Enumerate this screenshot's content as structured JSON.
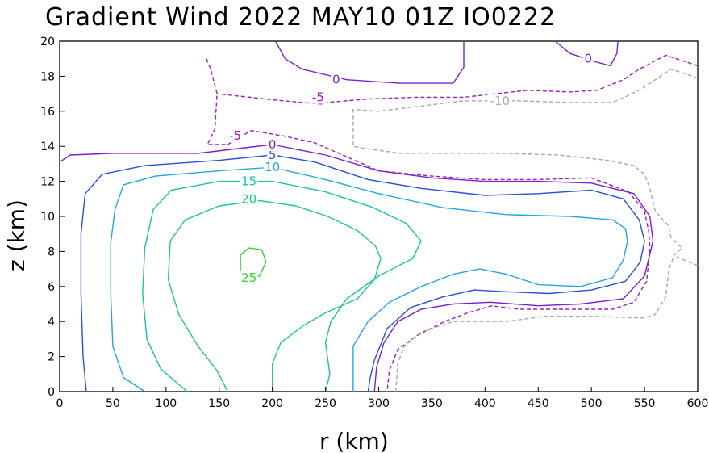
{
  "chart_data": {
    "type": "contour",
    "title": "Gradient Wind 2022 MAY10 01Z   IO0222",
    "xlabel": "r (km)",
    "ylabel": "z (km)",
    "xlim": [
      0,
      600
    ],
    "ylim": [
      0,
      20
    ],
    "xticks": [
      "0",
      "50",
      "100",
      "150",
      "200",
      "250",
      "300",
      "350",
      "400",
      "450",
      "500",
      "550",
      "600"
    ],
    "yticks": [
      "0",
      "2",
      "4",
      "6",
      "8",
      "10",
      "12",
      "14",
      "16",
      "18",
      "20"
    ],
    "grid": false,
    "colors": {
      "25": "#33cc33",
      "20": "#22c888",
      "15": "#1fbfa8",
      "10": "#22a6e0",
      "5": "#2a4fd6",
      "0": "#7a22c8",
      "-5": "#9a20b8",
      "-10": "#a8a8a8"
    },
    "levels": [
      {
        "value": 25,
        "label": "25",
        "style": "solid",
        "points": [
          [
            170,
            7.8
          ],
          [
            178,
            8.2
          ],
          [
            190,
            8.1
          ],
          [
            194,
            7.4
          ],
          [
            188,
            6.6
          ],
          [
            178,
            6.5
          ],
          [
            170,
            6.9
          ],
          [
            170,
            7.8
          ]
        ],
        "label_at": [
          178,
          6.5
        ]
      },
      {
        "value": 20,
        "label": "20",
        "style": "solid",
        "points": [
          [
            158,
            0
          ],
          [
            148,
            1.2
          ],
          [
            130,
            2.6
          ],
          [
            112,
            4.4
          ],
          [
            102,
            6.4
          ],
          [
            104,
            8.6
          ],
          [
            118,
            9.8
          ],
          [
            150,
            10.6
          ],
          [
            188,
            10.9
          ],
          [
            222,
            10.6
          ],
          [
            252,
            10.0
          ],
          [
            280,
            9.2
          ],
          [
            297,
            8.3
          ],
          [
            302,
            7.6
          ],
          [
            296,
            6.4
          ],
          [
            280,
            5.3
          ],
          [
            250,
            4.5
          ],
          [
            230,
            3.8
          ],
          [
            208,
            2.8
          ],
          [
            200,
            1.6
          ],
          [
            200,
            0
          ]
        ],
        "label_at": [
          178,
          11.0
        ]
      },
      {
        "value": 15,
        "label": "15",
        "style": "solid",
        "points": [
          [
            120,
            0
          ],
          [
            95,
            1.3
          ],
          [
            82,
            3.0
          ],
          [
            78,
            5.6
          ],
          [
            80,
            8.2
          ],
          [
            88,
            10.4
          ],
          [
            105,
            11.5
          ],
          [
            150,
            12.0
          ],
          [
            200,
            12.0
          ],
          [
            250,
            11.4
          ],
          [
            295,
            10.5
          ],
          [
            326,
            9.6
          ],
          [
            340,
            8.6
          ],
          [
            332,
            7.6
          ],
          [
            300,
            6.6
          ],
          [
            270,
            5.3
          ],
          [
            255,
            4.0
          ],
          [
            250,
            2.8
          ],
          [
            254,
            1.0
          ],
          [
            250,
            0
          ]
        ],
        "label_at": [
          178,
          12.0
        ]
      },
      {
        "value": 10,
        "label": "10",
        "style": "solid",
        "points": [
          [
            80,
            0
          ],
          [
            60,
            0.8
          ],
          [
            50,
            2.6
          ],
          [
            48,
            5.6
          ],
          [
            48,
            8.5
          ],
          [
            52,
            10.4
          ],
          [
            60,
            11.8
          ],
          [
            90,
            12.3
          ],
          [
            150,
            12.6
          ],
          [
            200,
            12.8
          ],
          [
            250,
            12.1
          ],
          [
            300,
            11.3
          ],
          [
            360,
            10.5
          ],
          [
            420,
            10.1
          ],
          [
            480,
            10.0
          ],
          [
            520,
            9.8
          ],
          [
            532,
            9.3
          ],
          [
            534,
            8.6
          ],
          [
            530,
            7.5
          ],
          [
            520,
            6.5
          ],
          [
            490,
            6.0
          ],
          [
            450,
            6.1
          ],
          [
            420,
            6.7
          ],
          [
            395,
            7.0
          ],
          [
            370,
            6.7
          ],
          [
            340,
            6.0
          ],
          [
            310,
            5.1
          ],
          [
            290,
            4.0
          ],
          [
            276,
            2.6
          ],
          [
            276,
            0.8
          ],
          [
            276,
            0
          ]
        ],
        "label_at": [
          200,
          12.8
        ]
      },
      {
        "value": 5,
        "label": "5",
        "style": "solid",
        "points": [
          [
            25,
            0
          ],
          [
            22,
            2.0
          ],
          [
            20,
            5.6
          ],
          [
            20,
            9.0
          ],
          [
            24,
            11.3
          ],
          [
            40,
            12.4
          ],
          [
            80,
            12.9
          ],
          [
            150,
            13.2
          ],
          [
            200,
            13.5
          ],
          [
            240,
            13.1
          ],
          [
            290,
            12.1
          ],
          [
            340,
            11.6
          ],
          [
            400,
            11.2
          ],
          [
            450,
            11.3
          ],
          [
            500,
            11.5
          ],
          [
            530,
            11.0
          ],
          [
            545,
            9.8
          ],
          [
            550,
            8.6
          ],
          [
            546,
            7.4
          ],
          [
            532,
            6.3
          ],
          [
            500,
            5.8
          ],
          [
            460,
            5.6
          ],
          [
            420,
            5.7
          ],
          [
            390,
            5.8
          ],
          [
            360,
            5.4
          ],
          [
            330,
            4.8
          ],
          [
            308,
            3.6
          ],
          [
            296,
            1.8
          ],
          [
            292,
            0.8
          ],
          [
            290,
            0
          ]
        ],
        "label_at": [
          200,
          13.5
        ]
      },
      {
        "value": 0,
        "label": "0",
        "style": "solid",
        "points": [
          [
            0,
            13.1
          ],
          [
            10,
            13.5
          ],
          [
            50,
            13.6
          ],
          [
            130,
            13.6
          ],
          [
            200,
            14.1
          ],
          [
            250,
            13.5
          ],
          [
            300,
            12.6
          ],
          [
            350,
            12.2
          ],
          [
            400,
            12.0
          ],
          [
            450,
            12.0
          ],
          [
            500,
            11.9
          ],
          [
            540,
            11.3
          ],
          [
            555,
            10.0
          ],
          [
            558,
            8.6
          ],
          [
            550,
            6.6
          ],
          [
            530,
            5.3
          ],
          [
            490,
            5.0
          ],
          [
            450,
            4.9
          ],
          [
            405,
            5.1
          ],
          [
            370,
            5.0
          ],
          [
            340,
            4.7
          ],
          [
            318,
            4.0
          ],
          [
            305,
            2.8
          ],
          [
            298,
            1.4
          ],
          [
            296,
            0
          ]
        ],
        "label_at": [
          200,
          14.1
        ]
      },
      {
        "value": 0,
        "label": "0",
        "style": "solid",
        "points": [
          [
            203,
            20
          ],
          [
            212,
            19.0
          ],
          [
            228,
            18.4
          ],
          [
            270,
            17.8
          ],
          [
            320,
            17.6
          ],
          [
            370,
            17.6
          ],
          [
            380,
            18.5
          ],
          [
            380,
            20
          ]
        ],
        "label_at": [
          260,
          17.8
        ]
      },
      {
        "value": 0,
        "label": "0",
        "style": "solid",
        "points": [
          [
            466,
            20
          ],
          [
            480,
            19.3
          ],
          [
            505,
            18.8
          ],
          [
            518,
            18.6
          ],
          [
            524,
            19.3
          ],
          [
            525,
            20
          ]
        ],
        "label_at": [
          497,
          19.0
        ]
      },
      {
        "value": -5,
        "label": "-5",
        "style": "dashed",
        "points": [
          [
            138,
            19.0
          ],
          [
            142,
            18.4
          ],
          [
            148,
            17.0
          ],
          [
            146,
            15.0
          ],
          [
            139,
            14.1
          ],
          [
            158,
            14.1
          ],
          [
            180,
            14.9
          ],
          [
            210,
            14.6
          ],
          [
            240,
            14.2
          ],
          [
            270,
            13.4
          ],
          [
            300,
            12.6
          ],
          [
            350,
            12.3
          ],
          [
            400,
            12.1
          ],
          [
            450,
            12.1
          ],
          [
            500,
            12.2
          ],
          [
            535,
            11.4
          ],
          [
            550,
            10.3
          ],
          [
            554,
            9.1
          ],
          [
            555,
            8.2
          ],
          [
            552,
            6.3
          ],
          [
            540,
            5.1
          ],
          [
            520,
            4.7
          ],
          [
            470,
            4.7
          ],
          [
            432,
            4.7
          ],
          [
            406,
            4.9
          ],
          [
            384,
            4.5
          ],
          [
            362,
            4.0
          ],
          [
            336,
            3.2
          ],
          [
            318,
            2.4
          ],
          [
            310,
            1.2
          ],
          [
            308,
            0
          ]
        ],
        "label_at": [
          165,
          14.6
        ]
      },
      {
        "value": -5,
        "label": "-5",
        "style": "dashed",
        "points": [
          [
            600,
            18.6
          ],
          [
            570,
            19.2
          ],
          [
            545,
            18.4
          ],
          [
            530,
            17.8
          ],
          [
            505,
            17.2
          ],
          [
            480,
            17.1
          ],
          [
            440,
            17.2
          ],
          [
            380,
            16.8
          ],
          [
            335,
            16.8
          ],
          [
            290,
            16.7
          ],
          [
            250,
            16.5
          ],
          [
            248,
            16.4
          ],
          [
            210,
            16.6
          ],
          [
            148,
            17.0
          ]
        ],
        "label_at": [
          243,
          16.8
        ]
      },
      {
        "value": -10,
        "label": "-10",
        "style": "dashed",
        "points": [
          [
            600,
            17.9
          ],
          [
            575,
            18.4
          ],
          [
            545,
            17.2
          ],
          [
            520,
            16.5
          ],
          [
            480,
            16.5
          ],
          [
            430,
            16.6
          ],
          [
            380,
            16.6
          ],
          [
            300,
            16.0
          ],
          [
            276,
            16.1
          ],
          [
            276,
            14.0
          ],
          [
            285,
            13.9
          ],
          [
            320,
            13.6
          ],
          [
            350,
            13.6
          ],
          [
            390,
            13.6
          ],
          [
            420,
            13.6
          ],
          [
            470,
            13.5
          ],
          [
            515,
            13.2
          ],
          [
            540,
            12.9
          ],
          [
            550,
            12.4
          ],
          [
            555,
            11.6
          ],
          [
            560,
            10.3
          ],
          [
            572,
            9.5
          ],
          [
            575,
            8.8
          ],
          [
            585,
            8.2
          ],
          [
            578,
            7.8
          ],
          [
            573,
            7.0
          ],
          [
            570,
            5.4
          ],
          [
            560,
            4.4
          ],
          [
            550,
            4.2
          ],
          [
            500,
            4.3
          ],
          [
            456,
            4.3
          ],
          [
            420,
            4.0
          ],
          [
            396,
            4.0
          ],
          [
            370,
            4.0
          ],
          [
            340,
            3.4
          ],
          [
            324,
            2.6
          ],
          [
            318,
            1.6
          ],
          [
            316,
            0
          ]
        ],
        "label_at": [
          414,
          16.6
        ]
      },
      {
        "value": -10,
        "label": "-10",
        "style": "dashed",
        "points": [
          [
            600,
            7.2
          ],
          [
            580,
            7.7
          ]
        ],
        "label_at": null
      }
    ]
  }
}
